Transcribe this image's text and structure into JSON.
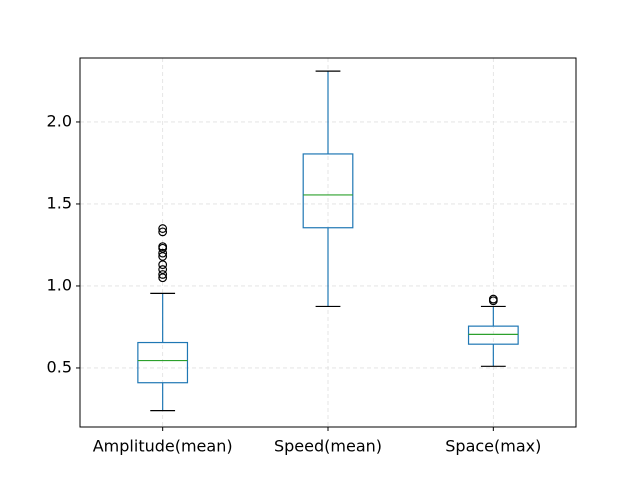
{
  "chart_data": {
    "type": "boxplot",
    "title": "",
    "xlabel": "",
    "ylabel": "",
    "ylim": [
      0.14,
      2.39
    ],
    "yticks": [
      0.5,
      1.0,
      1.5,
      2.0
    ],
    "ytick_labels": [
      "0.5",
      "1.0",
      "1.5",
      "2.0"
    ],
    "grid": true,
    "categories": [
      "Amplitude(mean)",
      "Speed(mean)",
      "Space(max)"
    ],
    "boxes": [
      {
        "label": "Amplitude(mean)",
        "whisker_low": 0.24,
        "q1": 0.41,
        "median": 0.545,
        "q3": 0.655,
        "whisker_high": 0.955,
        "outliers": [
          1.05,
          1.07,
          1.1,
          1.13,
          1.18,
          1.2,
          1.23,
          1.24,
          1.33,
          1.35
        ]
      },
      {
        "label": "Speed(mean)",
        "whisker_low": 0.875,
        "q1": 1.355,
        "median": 1.555,
        "q3": 1.805,
        "whisker_high": 2.31,
        "outliers": []
      },
      {
        "label": "Space(max)",
        "whisker_low": 0.51,
        "q1": 0.645,
        "median": 0.705,
        "q3": 0.755,
        "whisker_high": 0.875,
        "outliers": [
          0.91,
          0.92
        ]
      }
    ],
    "colors": {
      "box": "#1f77b4",
      "median": "#2ca02c",
      "whisker_cap": "#000000",
      "grid": "#e0e0e0"
    }
  }
}
